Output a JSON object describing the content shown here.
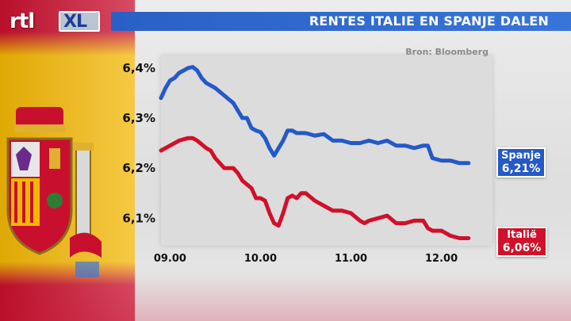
{
  "logo": {
    "brand": "rtl",
    "sub": "XL"
  },
  "header": {
    "title": "RENTES ITALIE EN SPANJE DALEN"
  },
  "source": "Bron: Bloomberg",
  "colors": {
    "spanje": "#2459c7",
    "italie": "#d1102a",
    "title_bar": "#2c64c8",
    "panel": "#dcdcdc"
  },
  "labels": {
    "spanje": {
      "name": "Spanje",
      "value": "6,21%"
    },
    "italie": {
      "name": "Italië",
      "value": "6,06%"
    }
  },
  "chart_data": {
    "type": "line",
    "title": "RENTES ITALIE EN SPANJE DALEN",
    "x_tick_labels": [
      "09.00",
      "10.00",
      "11.00",
      "12.00"
    ],
    "x_ticks": [
      9.0,
      10.0,
      11.0,
      12.0
    ],
    "y_tick_labels": [
      "6,4%",
      "6,3%",
      "6,2%",
      "6,1%"
    ],
    "y_ticks": [
      6.4,
      6.3,
      6.2,
      6.1
    ],
    "xlim": [
      8.9,
      12.6
    ],
    "ylim": [
      6.045,
      6.425
    ],
    "grid": false,
    "series": [
      {
        "name": "Spanje",
        "color": "#2459c7",
        "x": [
          8.9,
          8.95,
          9.0,
          9.05,
          9.1,
          9.15,
          9.2,
          9.25,
          9.3,
          9.35,
          9.4,
          9.5,
          9.6,
          9.7,
          9.8,
          9.85,
          9.9,
          9.95,
          10.0,
          10.05,
          10.1,
          10.15,
          10.2,
          10.25,
          10.3,
          10.35,
          10.4,
          10.5,
          10.6,
          10.7,
          10.8,
          10.9,
          11.0,
          11.1,
          11.2,
          11.3,
          11.4,
          11.5,
          11.6,
          11.7,
          11.8,
          11.85,
          11.9,
          12.0,
          12.1,
          12.2,
          12.3
        ],
        "values": [
          6.34,
          6.36,
          6.375,
          6.38,
          6.39,
          6.395,
          6.4,
          6.402,
          6.395,
          6.38,
          6.37,
          6.36,
          6.345,
          6.33,
          6.3,
          6.3,
          6.28,
          6.275,
          6.272,
          6.26,
          6.24,
          6.225,
          6.24,
          6.255,
          6.275,
          6.275,
          6.27,
          6.27,
          6.265,
          6.268,
          6.255,
          6.255,
          6.25,
          6.25,
          6.255,
          6.25,
          6.255,
          6.245,
          6.245,
          6.24,
          6.245,
          6.245,
          6.22,
          6.215,
          6.215,
          6.21,
          6.21
        ]
      },
      {
        "name": "Italië",
        "color": "#d1102a",
        "x": [
          8.9,
          9.0,
          9.1,
          9.2,
          9.25,
          9.3,
          9.4,
          9.45,
          9.5,
          9.6,
          9.7,
          9.75,
          9.8,
          9.9,
          9.95,
          10.0,
          10.05,
          10.1,
          10.15,
          10.2,
          10.25,
          10.3,
          10.35,
          10.4,
          10.45,
          10.5,
          10.6,
          10.7,
          10.8,
          10.9,
          11.0,
          11.1,
          11.15,
          11.2,
          11.3,
          11.4,
          11.5,
          11.6,
          11.7,
          11.8,
          11.85,
          11.9,
          12.0,
          12.1,
          12.2,
          12.3
        ],
        "values": [
          6.235,
          6.245,
          6.255,
          6.26,
          6.26,
          6.255,
          6.24,
          6.235,
          6.22,
          6.2,
          6.2,
          6.19,
          6.175,
          6.16,
          6.14,
          6.14,
          6.135,
          6.11,
          6.09,
          6.085,
          6.11,
          6.14,
          6.145,
          6.14,
          6.15,
          6.15,
          6.135,
          6.125,
          6.115,
          6.115,
          6.11,
          6.095,
          6.09,
          6.095,
          6.1,
          6.105,
          6.09,
          6.09,
          6.095,
          6.095,
          6.08,
          6.075,
          6.075,
          6.065,
          6.06,
          6.06
        ]
      }
    ],
    "end_labels": [
      {
        "series": "Spanje",
        "text": "6,21%"
      },
      {
        "series": "Italië",
        "text": "6,06%"
      }
    ]
  }
}
